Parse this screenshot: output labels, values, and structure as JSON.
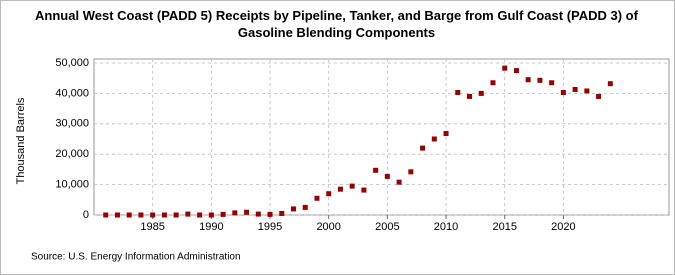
{
  "chart_data": {
    "type": "scatter",
    "title": "Annual West Coast (PADD 5) Receipts by Pipeline, Tanker, and Barge from Gulf Coast (PADD 3) of Gasoline Blending Components",
    "y_label": "Thousand Barrels",
    "source": "Source: U.S. Energy Information Administration",
    "x": [
      1981,
      1982,
      1983,
      1984,
      1985,
      1986,
      1987,
      1988,
      1989,
      1990,
      1991,
      1992,
      1993,
      1994,
      1995,
      1996,
      1997,
      1998,
      1999,
      2000,
      2001,
      2002,
      2003,
      2004,
      2005,
      2006,
      2007,
      2008,
      2009,
      2010,
      2011,
      2012,
      2013,
      2014,
      2015,
      2016,
      2017,
      2018,
      2019,
      2020,
      2021,
      2022,
      2023,
      2024
    ],
    "series": [
      {
        "name": "Receipts",
        "color": "#990000",
        "values": [
          0,
          0,
          0,
          0,
          0,
          0,
          0,
          300,
          0,
          0,
          200,
          700,
          900,
          300,
          200,
          500,
          2000,
          2500,
          5500,
          7000,
          8500,
          9500,
          8200,
          14700,
          12700,
          10800,
          14200,
          22000,
          25000,
          26800,
          40300,
          39000,
          40000,
          43500,
          48300,
          47500,
          44500,
          44300,
          43500,
          40300,
          41300,
          40800,
          39000,
          43200
        ]
      }
    ],
    "xlim": [
      1980,
      2029
    ],
    "xticks": [
      1985,
      1990,
      1995,
      2000,
      2005,
      2010,
      2015,
      2020
    ],
    "ylim": [
      0,
      50000
    ],
    "yticks": [
      {
        "value": 0,
        "label": "0"
      },
      {
        "value": 10000,
        "label": "10,000"
      },
      {
        "value": 20000,
        "label": "20,000"
      },
      {
        "value": 30000,
        "label": "30,000"
      },
      {
        "value": 40000,
        "label": "40,000"
      },
      {
        "value": 50000,
        "label": "50,000"
      }
    ],
    "grid": true
  }
}
